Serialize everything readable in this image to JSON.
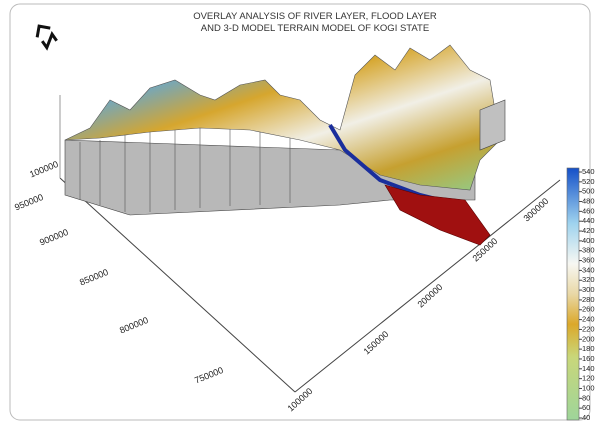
{
  "title": {
    "line1": "OVERLAY ANALYSIS OF RIVER LAYER, FLOOD LAYER",
    "line2": "AND 3-D   MODEL TERRAIN MODEL OF KOGI STATE"
  },
  "y_axis_labels": [
    "100000",
    "950000",
    "900000",
    "850000",
    "800000",
    "750000"
  ],
  "x_axis_labels": [
    "100000",
    "150000",
    "200000",
    "250000",
    "300000"
  ],
  "colorbar_labels": [
    "540",
    "520",
    "500",
    "480",
    "460",
    "440",
    "420",
    "400",
    "380",
    "360",
    "340",
    "320",
    "300",
    "280",
    "260",
    "240",
    "220",
    "200",
    "180",
    "160",
    "140",
    "120",
    "100",
    "80",
    "60",
    "40"
  ]
}
